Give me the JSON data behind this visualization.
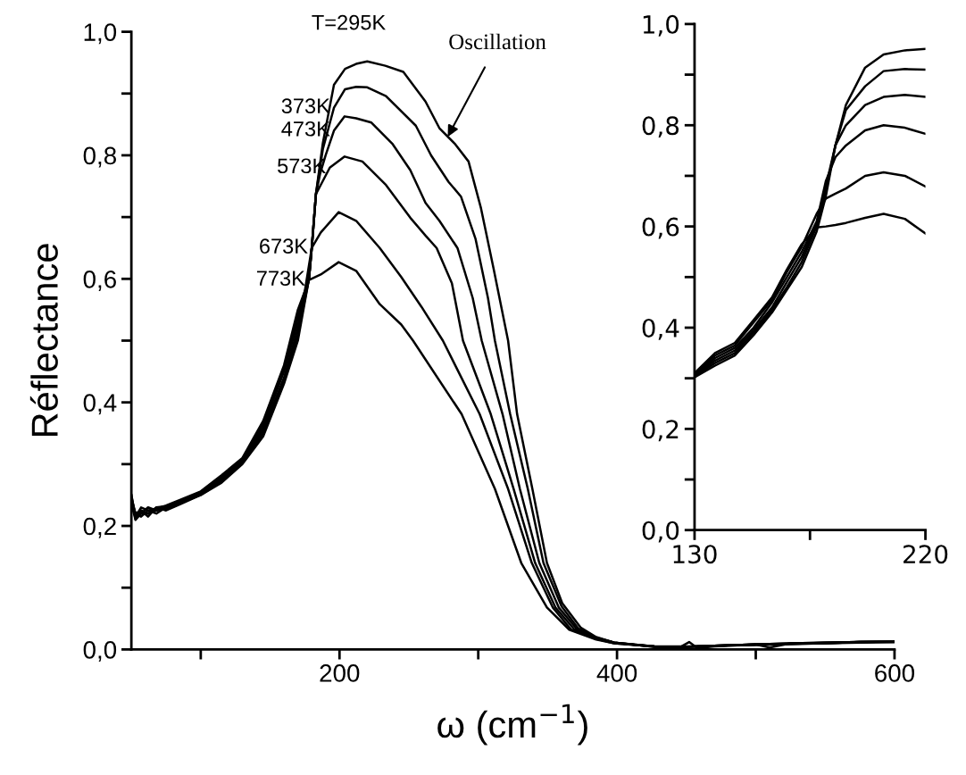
{
  "chart_data": [
    {
      "type": "line",
      "xlabel": "ω (cm$^{−1}$)",
      "ylabel": "Réflectance",
      "xlim": [
        50,
        600
      ],
      "ylim": [
        0,
        1.0
      ],
      "xticks": [
        {
          "value": 100,
          "label": null
        },
        200,
        {
          "value": 300,
          "label": null
        },
        400,
        {
          "value": 500,
          "label": null
        },
        600
      ],
      "yticks": [
        {
          "value": 0,
          "label": "0,0"
        },
        {
          "value": 0.1,
          "label": null
        },
        {
          "value": 0.2,
          "label": "0,2"
        },
        {
          "value": 0.3,
          "label": null
        },
        {
          "value": 0.4,
          "label": "0,4"
        },
        {
          "value": 0.5,
          "label": null
        },
        {
          "value": 0.6,
          "label": "0,6"
        },
        {
          "value": 0.7,
          "label": null
        },
        {
          "value": 0.8,
          "label": "0,8"
        },
        {
          "value": 0.9,
          "label": null
        },
        {
          "value": 1.0,
          "label": "1,0"
        }
      ],
      "grid": false,
      "legend": false,
      "line_style": "solid",
      "marker": "none",
      "annotations": [
        {
          "text": "Oscillation",
          "x": 278,
          "y": 0.83
        }
      ],
      "series": [
        {
          "name": "T=295K",
          "color": "#000000",
          "x": [
            50,
            53,
            57,
            62,
            68,
            75,
            85,
            100,
            115,
            130,
            145,
            160,
            170,
            178,
            180,
            183,
            188,
            196,
            204,
            212,
            220,
            233,
            246,
            262,
            272,
            283,
            293,
            302,
            311,
            321.5,
            328,
            339,
            349.5,
            360.5,
            374,
            385,
            398,
            427,
            445,
            452,
            458,
            470,
            500,
            510,
            525,
            550,
            575,
            600
          ],
          "values": [
            0.25,
            0.21,
            0.225,
            0.215,
            0.23,
            0.225,
            0.235,
            0.25,
            0.27,
            0.3,
            0.345,
            0.43,
            0.5,
            0.6,
            0.65,
            0.737,
            0.82,
            0.914,
            0.94,
            0.948,
            0.952,
            0.945,
            0.935,
            0.887,
            0.844,
            0.819,
            0.79,
            0.714,
            0.617,
            0.5,
            0.381,
            0.26,
            0.14,
            0.075,
            0.035,
            0.02,
            0.011,
            0.004,
            0.003,
            0.012,
            0.002,
            0.005,
            0.008,
            0.003,
            0.01,
            0.01,
            0.012,
            0.012
          ]
        },
        {
          "name": "373K",
          "color": "#000000",
          "x": [
            50,
            53,
            57,
            62,
            68,
            75,
            85,
            100,
            115,
            130,
            145,
            160,
            170,
            178,
            180,
            183,
            188,
            196,
            204,
            212,
            220,
            233.5,
            255,
            266,
            278.6,
            287.6,
            298,
            307,
            312,
            323,
            335.7,
            347,
            360,
            372,
            385,
            398,
            427,
            450,
            470,
            500,
            525,
            550,
            575,
            600
          ],
          "values": [
            0.24,
            0.215,
            0.22,
            0.22,
            0.225,
            0.228,
            0.237,
            0.25,
            0.272,
            0.302,
            0.35,
            0.435,
            0.51,
            0.6,
            0.65,
            0.737,
            0.81,
            0.877,
            0.907,
            0.911,
            0.91,
            0.896,
            0.848,
            0.8,
            0.757,
            0.733,
            0.665,
            0.569,
            0.5,
            0.381,
            0.26,
            0.14,
            0.07,
            0.034,
            0.019,
            0.011,
            0.004,
            0.004,
            0.006,
            0.007,
            0.009,
            0.01,
            0.011,
            0.012
          ]
        },
        {
          "name": "473K",
          "color": "#000000",
          "x": [
            50,
            53,
            57,
            62,
            68,
            75,
            85,
            100,
            115,
            130,
            145,
            160,
            170,
            178,
            180,
            183,
            186,
            190,
            196,
            203.7,
            212,
            223,
            238,
            251,
            262,
            272,
            285,
            296,
            302.5,
            317.5,
            330,
            344,
            358,
            371,
            385,
            398,
            427,
            450,
            470,
            500,
            525,
            550,
            575,
            600
          ],
          "values": [
            0.245,
            0.22,
            0.215,
            0.225,
            0.22,
            0.23,
            0.238,
            0.252,
            0.275,
            0.304,
            0.355,
            0.44,
            0.52,
            0.6,
            0.65,
            0.737,
            0.77,
            0.8,
            0.84,
            0.863,
            0.86,
            0.853,
            0.819,
            0.776,
            0.723,
            0.694,
            0.65,
            0.569,
            0.5,
            0.381,
            0.26,
            0.14,
            0.068,
            0.033,
            0.019,
            0.011,
            0.005,
            0.005,
            0.006,
            0.008,
            0.009,
            0.01,
            0.012,
            0.012
          ]
        },
        {
          "name": "573K",
          "color": "#000000",
          "x": [
            50,
            53,
            57,
            62,
            68,
            75,
            85,
            100,
            115,
            130,
            145,
            160,
            170,
            178,
            180,
            183,
            193,
            203.7,
            216.5,
            233.5,
            251,
            262,
            270,
            281,
            289,
            309,
            325.5,
            341,
            355.6,
            369,
            385,
            398,
            427,
            450,
            470,
            500,
            525,
            550,
            575,
            600
          ],
          "values": [
            0.235,
            0.21,
            0.22,
            0.23,
            0.225,
            0.23,
            0.24,
            0.253,
            0.277,
            0.306,
            0.36,
            0.45,
            0.53,
            0.6,
            0.65,
            0.737,
            0.78,
            0.798,
            0.79,
            0.752,
            0.699,
            0.67,
            0.65,
            0.593,
            0.5,
            0.381,
            0.26,
            0.14,
            0.068,
            0.033,
            0.018,
            0.011,
            0.005,
            0.004,
            0.006,
            0.008,
            0.009,
            0.011,
            0.012,
            0.013
          ]
        },
        {
          "name": "673K",
          "color": "#000000",
          "x": [
            50,
            53,
            57,
            62,
            68,
            75,
            85,
            100,
            115,
            130,
            145,
            160,
            170,
            175,
            180,
            186.5,
            199.4,
            212,
            229,
            244.5,
            259,
            274.5,
            301,
            321.5,
            338.6,
            353.7,
            367,
            385,
            398,
            427,
            450,
            470,
            500,
            525,
            550,
            575,
            600
          ],
          "values": [
            0.24,
            0.22,
            0.225,
            0.22,
            0.23,
            0.232,
            0.24,
            0.255,
            0.28,
            0.308,
            0.365,
            0.455,
            0.54,
            0.58,
            0.65,
            0.675,
            0.708,
            0.694,
            0.65,
            0.603,
            0.555,
            0.5,
            0.381,
            0.26,
            0.14,
            0.068,
            0.032,
            0.017,
            0.01,
            0.005,
            0.004,
            0.006,
            0.008,
            0.01,
            0.011,
            0.012,
            0.013
          ]
        },
        {
          "name": "773K",
          "color": "#000000",
          "x": [
            50,
            53,
            57,
            62,
            68,
            75,
            85,
            100,
            115,
            130,
            145,
            160,
            170,
            178,
            186.5,
            199.4,
            212,
            229,
            244.5,
            253,
            288,
            312,
            331,
            349.5,
            365.6,
            385,
            398,
            427,
            450,
            470,
            500,
            525,
            550,
            575,
            600
          ],
          "values": [
            0.25,
            0.215,
            0.23,
            0.225,
            0.228,
            0.233,
            0.242,
            0.256,
            0.282,
            0.31,
            0.37,
            0.46,
            0.55,
            0.598,
            0.607,
            0.627,
            0.613,
            0.559,
            0.526,
            0.5,
            0.381,
            0.26,
            0.14,
            0.068,
            0.032,
            0.016,
            0.01,
            0.005,
            0.004,
            0.006,
            0.008,
            0.01,
            0.011,
            0.012,
            0.013
          ]
        }
      ]
    },
    {
      "type": "line",
      "xlim": [
        130,
        220
      ],
      "ylim": [
        0,
        1.0
      ],
      "xticks": [
        130,
        {
          "value": 175,
          "label": null
        },
        220
      ],
      "yticks": [
        {
          "value": 0,
          "label": "0,0"
        },
        {
          "value": 0.1,
          "label": null
        },
        {
          "value": 0.2,
          "label": "0,2"
        },
        {
          "value": 0.3,
          "label": null
        },
        {
          "value": 0.4,
          "label": "0,4"
        },
        {
          "value": 0.5,
          "label": null
        },
        {
          "value": 0.6,
          "label": "0,6"
        },
        {
          "value": 0.7,
          "label": null
        },
        {
          "value": 0.8,
          "label": "0,8"
        },
        {
          "value": 0.9,
          "label": null
        },
        {
          "value": 1.0,
          "label": "1,0"
        }
      ],
      "grid": false,
      "legend": false,
      "line_style": "solid",
      "marker": "none",
      "x": [
        130,
        138,
        145.7,
        153,
        160.2,
        166,
        171.8,
        177.6,
        181.2,
        184.9,
        189,
        196.5,
        203.7,
        212,
        220
      ],
      "series": [
        {
          "color": "#000000",
          "values": [
            0.302,
            0.325,
            0.345,
            0.385,
            0.43,
            0.475,
            0.52,
            0.59,
            0.66,
            0.76,
            0.84,
            0.914,
            0.94,
            0.948,
            0.951
          ]
        },
        {
          "color": "#000000",
          "values": [
            0.304,
            0.33,
            0.35,
            0.39,
            0.435,
            0.48,
            0.53,
            0.6,
            0.67,
            0.76,
            0.83,
            0.877,
            0.907,
            0.911,
            0.91
          ]
        },
        {
          "color": "#000000",
          "values": [
            0.305,
            0.335,
            0.355,
            0.395,
            0.44,
            0.49,
            0.54,
            0.605,
            0.68,
            0.76,
            0.8,
            0.84,
            0.856,
            0.86,
            0.856
          ]
        },
        {
          "color": "#000000",
          "values": [
            0.306,
            0.34,
            0.36,
            0.4,
            0.45,
            0.5,
            0.55,
            0.61,
            0.69,
            0.737,
            0.76,
            0.79,
            0.8,
            0.795,
            0.783
          ]
        },
        {
          "color": "#000000",
          "values": [
            0.307,
            0.345,
            0.365,
            0.41,
            0.455,
            0.51,
            0.56,
            0.625,
            0.655,
            0.665,
            0.675,
            0.7,
            0.707,
            0.7,
            0.679
          ]
        },
        {
          "color": "#000000",
          "values": [
            0.31,
            0.35,
            0.37,
            0.415,
            0.46,
            0.515,
            0.565,
            0.598,
            0.6,
            0.603,
            0.607,
            0.617,
            0.625,
            0.615,
            0.586
          ]
        }
      ]
    }
  ]
}
